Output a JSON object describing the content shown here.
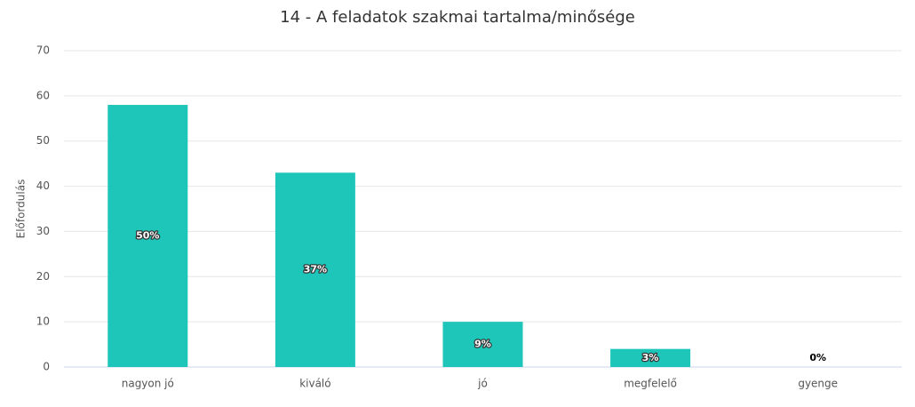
{
  "chart_data": {
    "type": "bar",
    "title": "14 - A feladatok szakmai tartalma/minősége",
    "y_label": "Előfordulás",
    "categories": [
      "nagyon jó",
      "kiváló",
      "jó",
      "megfelelő",
      "gyenge"
    ],
    "values": [
      58,
      43,
      10,
      4,
      0
    ],
    "shares": [
      50,
      37,
      9,
      3,
      0
    ],
    "share_labels": [
      "50%",
      "37%",
      "9%",
      "3%",
      "0%"
    ],
    "color": "#1dc6b9",
    "ylim": [
      0,
      70
    ],
    "yticks": [
      0,
      10,
      20,
      30,
      40,
      50,
      60,
      70
    ],
    "grid": true
  }
}
